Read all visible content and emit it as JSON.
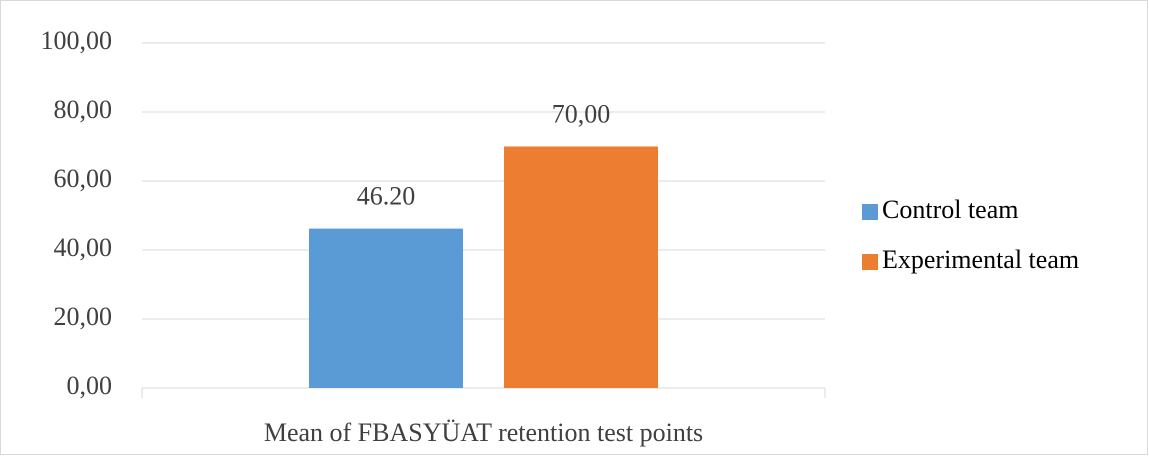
{
  "chart_data": {
    "type": "bar",
    "categories": [
      "Mean of FBASYÜAT retention test points"
    ],
    "series": [
      {
        "name": "Control team",
        "color": "#5b9bd5",
        "values": [
          46.2
        ],
        "value_labels": [
          "46.20"
        ]
      },
      {
        "name": "Experimental team",
        "color": "#ed7d31",
        "values": [
          70
        ],
        "value_labels": [
          "70,00"
        ]
      }
    ],
    "ylim": [
      0,
      100
    ],
    "yticks": [
      {
        "value": 0,
        "label": "0,00"
      },
      {
        "value": 20,
        "label": "20,00"
      },
      {
        "value": 40,
        "label": "40,00"
      },
      {
        "value": 60,
        "label": "60,00"
      },
      {
        "value": 80,
        "label": "80,00"
      },
      {
        "value": 100,
        "label": "100,00"
      }
    ],
    "grid": true,
    "legend": "right"
  }
}
